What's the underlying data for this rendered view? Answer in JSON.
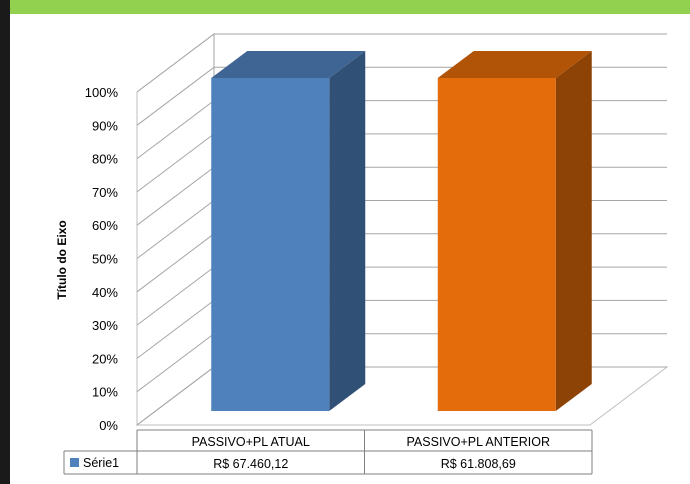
{
  "chart_data": {
    "type": "bar",
    "style": "3d-stacked-100-percent",
    "title": "",
    "xlabel": "",
    "ylabel": "Título do Eixo",
    "ylim": [
      0,
      100
    ],
    "yticks": [
      "0%",
      "10%",
      "20%",
      "30%",
      "40%",
      "50%",
      "60%",
      "70%",
      "80%",
      "90%",
      "100%"
    ],
    "categories": [
      "PASSIVO+PL ATUAL",
      "PASSIVO+PL ANTERIOR"
    ],
    "series": [
      {
        "name": "Série1",
        "values": [
          100,
          100
        ],
        "value_labels": [
          "R$ 67.460,12",
          "R$ 61.808,69"
        ]
      }
    ],
    "bar_colors": [
      "#4f81bd",
      "#e46c0a"
    ],
    "legend": "data-table-left",
    "grid": true
  }
}
